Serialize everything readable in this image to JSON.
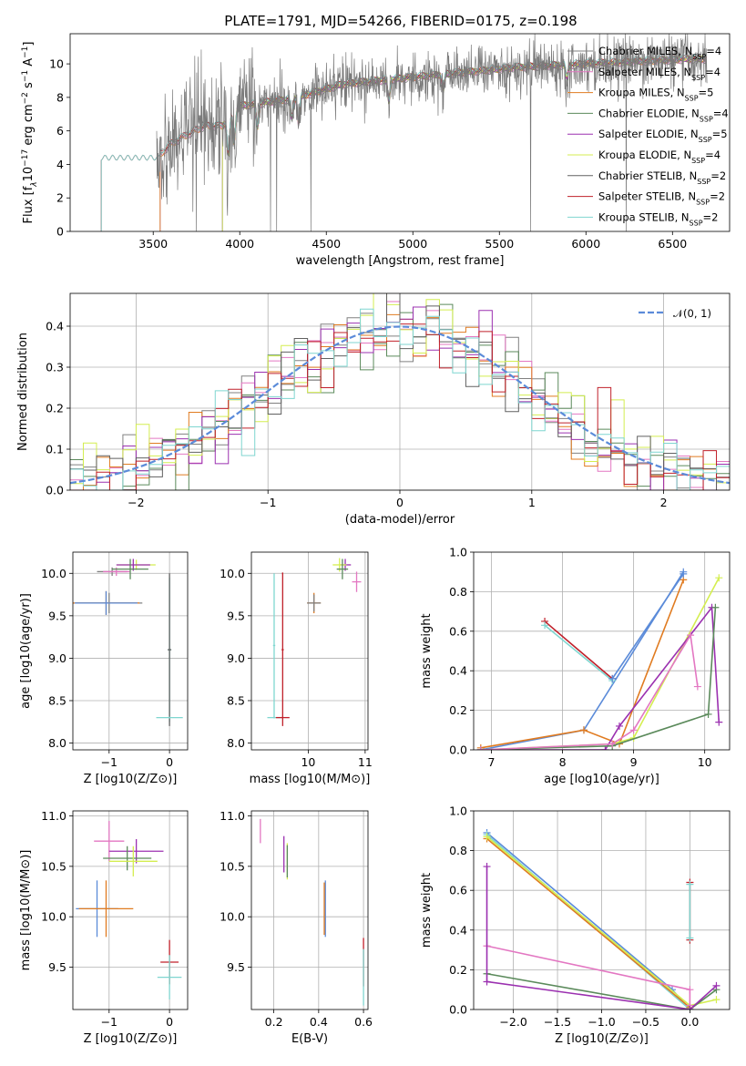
{
  "figure": {
    "title": "PLATE=1791, MJD=54266, FIBERID=0175, z=0.198"
  },
  "colors": {
    "Chabrier MILES": "#808080",
    "Salpeter MILES": "#e377c2",
    "Kroupa MILES": "#e07b20",
    "Chabrier ELODIE": "#5b8a5b",
    "Salpeter ELODIE": "#9b30b0",
    "Kroupa ELODIE": "#d4ee50",
    "Chabrier STELIB": "#606060",
    "Salpeter STELIB": "#c0202a",
    "Kroupa STELIB": "#7fd6d0",
    "gaussian": "#5b8bd9"
  },
  "chart_data": [
    {
      "id": "spectrum",
      "type": "line",
      "title": "PLATE=1791, MJD=54266, FIBERID=0175, z=0.198",
      "xlabel": "wavelength [Angstrom, rest frame]",
      "ylabel_parts": [
        "Flux [f",
        "λ",
        "10",
        "−17",
        " erg cm",
        "−2",
        " s",
        "−1",
        " A",
        "−1",
        "]"
      ],
      "xlim": [
        3020,
        6830
      ],
      "ylim": [
        0,
        11.8
      ],
      "xticks": [
        3500,
        4000,
        4500,
        5000,
        5500,
        6000,
        6500
      ],
      "yticks": [
        0,
        2,
        4,
        6,
        8,
        10
      ],
      "legend_position": "upper right",
      "series": [
        {
          "name": "Chabrier MILES",
          "nssp": "4",
          "start": 3540
        },
        {
          "name": "Salpeter MILES",
          "nssp": "4",
          "start": 3540
        },
        {
          "name": "Kroupa MILES",
          "nssp": "5",
          "start": 3540
        },
        {
          "name": "Chabrier ELODIE",
          "nssp": "4",
          "start": 3900
        },
        {
          "name": "Salpeter ELODIE",
          "nssp": "5",
          "start": 3900
        },
        {
          "name": "Kroupa ELODIE",
          "nssp": "4",
          "start": 3900
        },
        {
          "name": "Chabrier STELIB",
          "nssp": "2",
          "start": 3200
        },
        {
          "name": "Salpeter STELIB",
          "nssp": "2",
          "start": 3200
        },
        {
          "name": "Kroupa STELIB",
          "nssp": "2",
          "start": 3200
        }
      ],
      "model_continuum": {
        "x": [
          3200,
          3220,
          3300,
          3400,
          3500,
          3540,
          3600,
          3700,
          3800,
          3900,
          4000,
          4100,
          4200,
          4300,
          4400,
          4500,
          4600,
          4800,
          5000,
          5200,
          5400,
          5600,
          5800,
          6000,
          6200,
          6400,
          6600,
          6700
        ],
        "y": [
          0,
          4.5,
          4.4,
          4.3,
          4.4,
          4.6,
          5.2,
          5.8,
          6.3,
          6.3,
          7.5,
          7.6,
          7.8,
          7.9,
          8.2,
          8.5,
          8.8,
          9.0,
          9.2,
          9.4,
          9.6,
          9.8,
          9.9,
          10.0,
          10.1,
          10.2,
          10.3,
          10.3
        ]
      },
      "observed": {
        "name": "data",
        "x_start": 3520,
        "x_end": 6700
      }
    },
    {
      "id": "residuals",
      "type": "line",
      "xlabel": "(data-model)/error",
      "ylabel": "Normed distribution",
      "xlim": [
        -2.5,
        2.5
      ],
      "ylim": [
        0,
        0.48
      ],
      "xticks": [
        -2,
        -1,
        0,
        1,
        2
      ],
      "xtick_labels": [
        "−2",
        "−1",
        "0",
        "1",
        "2"
      ],
      "yticks": [
        0,
        0.1,
        0.2,
        0.3,
        0.4
      ],
      "ytick_labels": [
        "0.0",
        "0.1",
        "0.2",
        "0.3",
        "0.4"
      ],
      "legend": "𝒩(0, 1)",
      "legend_position": "upper right",
      "bin_width": 0.1,
      "gaussian": {
        "mu": 0,
        "sigma": 1
      }
    },
    {
      "id": "age-vs-Z",
      "type": "scatter",
      "xlabel": "Z [log10(Z/Z⊙)]",
      "ylabel": "age  [log10(age/yr)]",
      "xlim": [
        -1.6,
        0.3
      ],
      "ylim": [
        7.92,
        10.25
      ],
      "xticks": [
        -1,
        0
      ],
      "xtick_labels": [
        "−1",
        "0"
      ],
      "yticks": [
        8.0,
        8.5,
        9.0,
        9.5,
        10.0
      ],
      "ytick_labels": [
        "8.0",
        "8.5",
        "9.0",
        "9.5",
        "10.0"
      ],
      "points": [
        {
          "s": "Chabrier MILES",
          "x": -1.0,
          "y": 9.65,
          "xe": 0.55,
          "ye": 0.12
        },
        {
          "s": "Kroupa MILES",
          "x": -1.05,
          "y": 9.65,
          "xe": 0.55,
          "ye": 0.14
        },
        {
          "s": "gaussian",
          "x": -1.05,
          "y": 9.65,
          "xe": 0.52,
          "ye": 0.14
        },
        {
          "s": "Chabrier MILES",
          "x": -0.95,
          "y": 10.02,
          "xe": 0.25,
          "ye": 0.05
        },
        {
          "s": "Salpeter MILES",
          "x": -0.88,
          "y": 10.02,
          "xe": 0.22,
          "ye": 0.05
        },
        {
          "s": "Kroupa ELODIE",
          "x": -0.55,
          "y": 10.1,
          "xe": 0.32,
          "ye": 0.06
        },
        {
          "s": "Salpeter ELODIE",
          "x": -0.6,
          "y": 10.1,
          "xe": 0.28,
          "ye": 0.07
        },
        {
          "s": "Chabrier ELODIE",
          "x": -0.65,
          "y": 10.05,
          "xe": 0.3,
          "ye": 0.12
        },
        {
          "s": "Kroupa STELIB",
          "x": 0.0,
          "y": 9.1,
          "xe": 0.03,
          "ye": 0.85
        },
        {
          "s": "Chabrier STELIB",
          "x": 0.0,
          "y": 9.1,
          "xe": 0.03,
          "ye": 0.9
        },
        {
          "s": "Kroupa STELIB",
          "x": 0.0,
          "y": 8.3,
          "xe": 0.22,
          "ye": 0.01
        }
      ]
    },
    {
      "id": "age-vs-mass",
      "type": "scatter",
      "xlabel": "mass [log10(M/M⊙)]",
      "xlim": [
        9.0,
        11.05
      ],
      "ylim": [
        7.92,
        10.25
      ],
      "xticks": [
        10,
        11
      ],
      "xtick_labels": [
        "10",
        "11"
      ],
      "yticks": [
        8.0,
        8.5,
        9.0,
        9.5,
        10.0
      ],
      "ytick_labels": [
        "8.0",
        "8.5",
        "9.0",
        "9.5",
        "10.0"
      ],
      "points": [
        {
          "s": "Kroupa STELIB",
          "x": 9.4,
          "y": 9.15,
          "xe": 0.02,
          "ye": 0.85
        },
        {
          "s": "Salpeter STELIB",
          "x": 9.55,
          "y": 9.1,
          "xe": 0.02,
          "ye": 0.9
        },
        {
          "s": "Kroupa STELIB",
          "x": 9.4,
          "y": 8.3,
          "xe": 0.12,
          "ye": 0.01
        },
        {
          "s": "Salpeter STELIB",
          "x": 9.55,
          "y": 8.3,
          "xe": 0.12,
          "ye": 0.01
        },
        {
          "s": "Kroupa MILES",
          "x": 10.1,
          "y": 9.65,
          "xe": 0.12,
          "ye": 0.12
        },
        {
          "s": "Chabrier MILES",
          "x": 10.1,
          "y": 9.65,
          "xe": 0.12,
          "ye": 0.1
        },
        {
          "s": "Salpeter ELODIE",
          "x": 10.65,
          "y": 10.1,
          "xe": 0.1,
          "ye": 0.07
        },
        {
          "s": "Kroupa ELODIE",
          "x": 10.55,
          "y": 10.1,
          "xe": 0.12,
          "ye": 0.08
        },
        {
          "s": "Chabrier ELODIE",
          "x": 10.6,
          "y": 10.05,
          "xe": 0.1,
          "ye": 0.12
        },
        {
          "s": "Salpeter MILES",
          "x": 10.85,
          "y": 9.9,
          "xe": 0.08,
          "ye": 0.12
        },
        {
          "s": "Salpeter STELIB",
          "x": 9.55,
          "y": 10.0,
          "xe": 0.01,
          "ye": 0.01
        }
      ]
    },
    {
      "id": "weight-vs-age",
      "type": "line",
      "xlabel": "age  [log10(age/yr)]",
      "ylabel": "mass weight",
      "xlim": [
        6.75,
        10.35
      ],
      "ylim": [
        0,
        1.0
      ],
      "xticks": [
        7,
        8,
        9,
        10
      ],
      "xtick_labels": [
        "7",
        "8",
        "9",
        "10"
      ],
      "yticks": [
        0.0,
        0.2,
        0.4,
        0.6,
        0.8,
        1.0
      ],
      "ytick_labels": [
        "0.0",
        "0.2",
        "0.4",
        "0.6",
        "0.8",
        "1.0"
      ],
      "series": [
        {
          "s": "gaussian",
          "x": [
            6.85,
            8.3,
            9.7
          ],
          "y": [
            0.0,
            0.1,
            0.9
          ]
        },
        {
          "s": "Kroupa MILES",
          "x": [
            6.85,
            8.3,
            8.8,
            9.7
          ],
          "y": [
            0.01,
            0.1,
            0.03,
            0.86
          ]
        },
        {
          "s": "Kroupa ELODIE",
          "x": [
            6.85,
            8.7,
            9.0,
            10.2
          ],
          "y": [
            0.0,
            0.03,
            0.06,
            0.87
          ]
        },
        {
          "s": "Salpeter ELODIE",
          "x": [
            6.85,
            8.6,
            8.8,
            10.1,
            10.2
          ],
          "y": [
            0.0,
            0.0,
            0.12,
            0.72,
            0.14
          ]
        },
        {
          "s": "Chabrier ELODIE",
          "x": [
            6.85,
            8.7,
            10.05,
            10.15
          ],
          "y": [
            0.0,
            0.02,
            0.18,
            0.72
          ]
        },
        {
          "s": "Salpeter MILES",
          "x": [
            6.85,
            8.7,
            9.0,
            9.8,
            9.9
          ],
          "y": [
            0.0,
            0.03,
            0.1,
            0.58,
            0.32
          ]
        },
        {
          "s": "Salpeter STELIB",
          "x": [
            7.75,
            8.7
          ],
          "y": [
            0.65,
            0.36
          ]
        },
        {
          "s": "Kroupa STELIB",
          "x": [
            7.75,
            8.7
          ],
          "y": [
            0.63,
            0.35
          ]
        },
        {
          "s": "gaussian",
          "x": [
            8.7,
            9.7
          ],
          "y": [
            0.36,
            0.89
          ]
        }
      ]
    },
    {
      "id": "mass-vs-Z",
      "type": "scatter",
      "xlabel": "Z [log10(Z/Z⊙)]",
      "ylabel": "mass [log10(M/M⊙)]",
      "xlim": [
        -1.6,
        0.3
      ],
      "ylim": [
        9.08,
        11.05
      ],
      "xticks": [
        -1,
        0
      ],
      "xtick_labels": [
        "−1",
        "0"
      ],
      "yticks": [
        9.5,
        10.0,
        10.5,
        11.0
      ],
      "ytick_labels": [
        "9.5",
        "10.0",
        "10.5",
        "11.0"
      ],
      "points": [
        {
          "s": "Salpeter MILES",
          "x": -1.0,
          "y": 10.75,
          "xe": 0.25,
          "ye": 0.2
        },
        {
          "s": "Salpeter ELODIE",
          "x": -0.55,
          "y": 10.65,
          "xe": 0.45,
          "ye": 0.12
        },
        {
          "s": "Chabrier ELODIE",
          "x": -0.7,
          "y": 10.58,
          "xe": 0.4,
          "ye": 0.12
        },
        {
          "s": "Kroupa ELODIE",
          "x": -0.6,
          "y": 10.55,
          "xe": 0.4,
          "ye": 0.15
        },
        {
          "s": "gaussian",
          "x": -1.2,
          "y": 10.08,
          "xe": 0.35,
          "ye": 0.28
        },
        {
          "s": "Kroupa MILES",
          "x": -1.05,
          "y": 10.08,
          "xe": 0.45,
          "ye": 0.28
        },
        {
          "s": "Salpeter STELIB",
          "x": 0.0,
          "y": 9.55,
          "xe": 0.15,
          "ye": 0.22
        },
        {
          "s": "Kroupa STELIB",
          "x": 0.0,
          "y": 9.4,
          "xe": 0.2,
          "ye": 0.22
        }
      ]
    },
    {
      "id": "mass-vs-EBV",
      "type": "scatter",
      "xlabel": "E(B-V)",
      "xlim": [
        0.1,
        0.62
      ],
      "ylim": [
        9.08,
        11.05
      ],
      "xticks": [
        0.2,
        0.4,
        0.6
      ],
      "xtick_labels": [
        "0.2",
        "0.4",
        "0.6"
      ],
      "yticks": [
        9.5,
        10.0,
        10.5,
        11.0
      ],
      "ytick_labels": [
        "9.5",
        "10.0",
        "10.5",
        "11.0"
      ],
      "points": [
        {
          "s": "Salpeter MILES",
          "x": 0.14,
          "y": 10.85,
          "xe": 0.0,
          "ye": 0.12
        },
        {
          "s": "Salpeter ELODIE",
          "x": 0.245,
          "y": 10.62,
          "xe": 0.0,
          "ye": 0.18
        },
        {
          "s": "Kroupa ELODIE",
          "x": 0.26,
          "y": 10.55,
          "xe": 0.0,
          "ye": 0.18
        },
        {
          "s": "Chabrier ELODIE",
          "x": 0.26,
          "y": 10.55,
          "xe": 0.0,
          "ye": 0.16
        },
        {
          "s": "gaussian",
          "x": 0.43,
          "y": 10.08,
          "xe": 0.0,
          "ye": 0.28
        },
        {
          "s": "Kroupa MILES",
          "x": 0.425,
          "y": 10.08,
          "xe": 0.0,
          "ye": 0.26
        },
        {
          "s": "Salpeter STELIB",
          "x": 0.6,
          "y": 9.55,
          "xe": 0.0,
          "ye": 0.24
        },
        {
          "s": "Kroupa STELIB",
          "x": 0.6,
          "y": 9.4,
          "xe": 0.0,
          "ye": 0.28
        }
      ]
    },
    {
      "id": "weight-vs-Z",
      "type": "line",
      "xlabel": "Z [log10(Z/Z⊙)]",
      "ylabel": "mass weight",
      "xlim": [
        -2.45,
        0.45
      ],
      "ylim": [
        0,
        1.0
      ],
      "xticks": [
        -2.0,
        -1.5,
        -1.0,
        -0.5,
        0.0
      ],
      "xtick_labels": [
        "−2.0",
        "−1.5",
        "−1.0",
        "−0.5",
        "0.0"
      ],
      "yticks": [
        0.0,
        0.2,
        0.4,
        0.6,
        0.8,
        1.0
      ],
      "ytick_labels": [
        "0.0",
        "0.2",
        "0.4",
        "0.6",
        "0.8",
        "1.0"
      ],
      "series": [
        {
          "s": "gaussian",
          "x": [
            -2.3,
            -0.2,
            0.0
          ],
          "y": [
            0.89,
            0.1,
            0.0
          ]
        },
        {
          "s": "Kroupa STELIB",
          "x": [
            -2.3,
            0.0
          ],
          "y": [
            0.88,
            0.0
          ]
        },
        {
          "s": "Kroupa MILES",
          "x": [
            -2.3,
            0.0
          ],
          "y": [
            0.86,
            0.01
          ]
        },
        {
          "s": "Kroupa ELODIE",
          "x": [
            -2.3,
            0.0,
            0.3
          ],
          "y": [
            0.87,
            0.02,
            0.05
          ]
        },
        {
          "s": "Salpeter MILES",
          "x": [
            -2.3,
            0.0,
            0.0
          ],
          "y": [
            0.32,
            0.1,
            0.02
          ]
        },
        {
          "s": "Chabrier ELODIE",
          "x": [
            -2.3,
            0.0,
            0.3
          ],
          "y": [
            0.18,
            0.0,
            0.1
          ]
        },
        {
          "s": "Salpeter ELODIE",
          "x": [
            -2.3,
            -2.3,
            0.0,
            0.3
          ],
          "y": [
            0.72,
            0.14,
            0.0,
            0.12
          ]
        },
        {
          "s": "Salpeter STELIB",
          "x": [
            0.0,
            0.0
          ],
          "y": [
            0.64,
            0.35
          ]
        },
        {
          "s": "Kroupa STELIB",
          "x": [
            0.0,
            0.0
          ],
          "y": [
            0.63,
            0.36
          ]
        }
      ]
    }
  ]
}
